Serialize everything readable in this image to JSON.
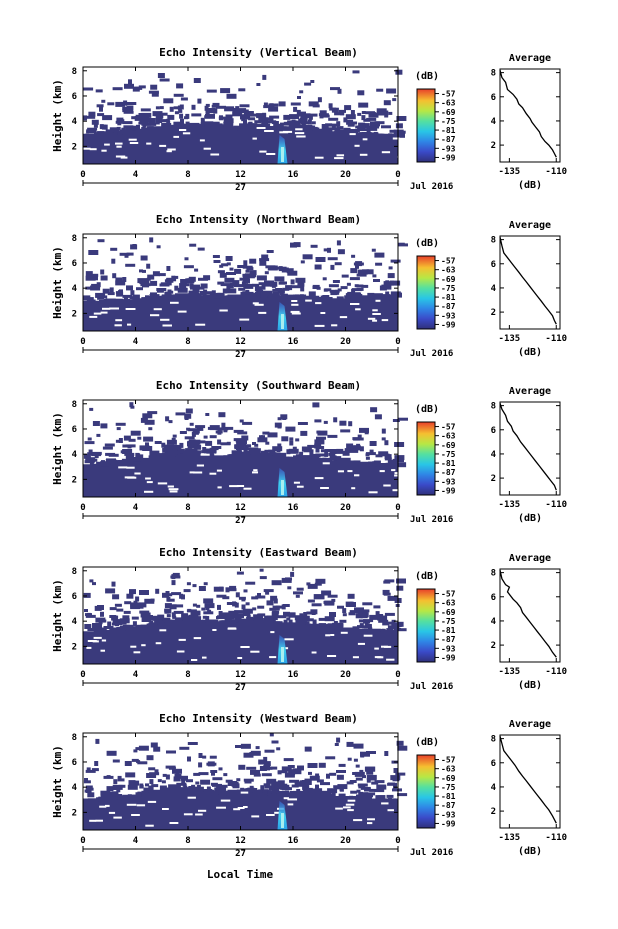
{
  "figure": {
    "xlabel": "Local Time",
    "date_label": "Jul 2016",
    "day_label": "27",
    "colorbar_unit": "(dB)",
    "avg_title": "Average",
    "avg_xlabel": "(dB)"
  },
  "chart_data": [
    {
      "type": "heatmap",
      "title": "Echo Intensity (Vertical Beam)",
      "ylabel": "Height (km)",
      "x_ticks": [
        "0",
        "4",
        "8",
        "12",
        "16",
        "20",
        "0"
      ],
      "xlim": [
        0,
        24
      ],
      "y_ticks": [
        "2",
        "4",
        "6",
        "8"
      ],
      "ylim": [
        0.6,
        8.3
      ],
      "colorbar_ticks": [
        "-57",
        "-63",
        "-69",
        "-75",
        "-81",
        "-87",
        "-93",
        "-99"
      ],
      "colorbar_range": [
        -102,
        -54
      ],
      "dense_layer_top_km": [
        3.0,
        3.2,
        3.2,
        3.3,
        3.4,
        3.6,
        3.7,
        3.8,
        3.8,
        3.7,
        3.6,
        3.6,
        3.7,
        3.8,
        3.6,
        3.6,
        3.7,
        3.5,
        3.4,
        3.2,
        3.3,
        3.1,
        3.0,
        3.0
      ],
      "enhanced_echo_time_h": 15.2,
      "enhanced_echo_top_km": 2.9
    },
    {
      "type": "line",
      "title": "Average",
      "xlabel": "(dB)",
      "x_ticks": [
        "-135",
        "-110"
      ],
      "xlim": [
        -140,
        -108
      ],
      "y_ticks": [
        "2",
        "4",
        "6",
        "8"
      ],
      "ylim": [
        0.6,
        8.3
      ],
      "x": [
        -140,
        -139,
        -137,
        -136,
        -133,
        -131,
        -130,
        -128,
        -126,
        -124,
        -123,
        -121,
        -119,
        -118,
        -116,
        -114,
        -112,
        -111,
        -110
      ],
      "y": [
        8.2,
        7.6,
        7.2,
        6.6,
        6.2,
        5.8,
        5.4,
        5.1,
        4.6,
        4.2,
        3.9,
        3.5,
        3.1,
        2.7,
        2.3,
        2.0,
        1.6,
        1.3,
        1.0
      ]
    },
    {
      "type": "heatmap",
      "title": "Echo Intensity (Northward Beam)",
      "ylabel": "Height (km)",
      "x_ticks": [
        "0",
        "4",
        "8",
        "12",
        "16",
        "20",
        "0"
      ],
      "xlim": [
        0,
        24
      ],
      "y_ticks": [
        "2",
        "4",
        "6",
        "8"
      ],
      "ylim": [
        0.6,
        8.3
      ],
      "colorbar_ticks": [
        "-57",
        "-63",
        "-69",
        "-75",
        "-81",
        "-87",
        "-93",
        "-99"
      ],
      "colorbar_range": [
        -102,
        -54
      ],
      "dense_layer_top_km": [
        3.0,
        3.0,
        3.1,
        3.1,
        3.2,
        3.4,
        3.5,
        3.6,
        3.6,
        3.4,
        3.4,
        3.5,
        3.7,
        3.6,
        3.5,
        3.4,
        3.5,
        3.4,
        3.3,
        3.2,
        3.3,
        3.3,
        3.4,
        3.4
      ],
      "enhanced_echo_time_h": 15.2,
      "enhanced_echo_top_km": 2.9
    },
    {
      "type": "line",
      "title": "Average",
      "xlabel": "(dB)",
      "x_ticks": [
        "-135",
        "-110"
      ],
      "xlim": [
        -140,
        -108
      ],
      "y_ticks": [
        "2",
        "4",
        "6",
        "8"
      ],
      "ylim": [
        0.6,
        8.3
      ],
      "x": [
        -140,
        -139,
        -138,
        -136,
        -134,
        -132,
        -130,
        -128,
        -126,
        -124,
        -122,
        -120,
        -118,
        -116,
        -114,
        -112,
        -111,
        -110
      ],
      "y": [
        8.2,
        7.5,
        6.9,
        6.5,
        6.1,
        5.7,
        5.3,
        4.9,
        4.5,
        4.1,
        3.7,
        3.3,
        2.9,
        2.5,
        2.1,
        1.7,
        1.3,
        1.0
      ]
    },
    {
      "type": "heatmap",
      "title": "Echo Intensity (Southward Beam)",
      "ylabel": "Height (km)",
      "x_ticks": [
        "0",
        "4",
        "8",
        "12",
        "16",
        "20",
        "0"
      ],
      "xlim": [
        0,
        24
      ],
      "y_ticks": [
        "2",
        "4",
        "6",
        "8"
      ],
      "ylim": [
        0.6,
        8.3
      ],
      "colorbar_ticks": [
        "-57",
        "-63",
        "-69",
        "-75",
        "-81",
        "-87",
        "-93",
        "-99"
      ],
      "colorbar_range": [
        -102,
        -54
      ],
      "dense_layer_top_km": [
        3.2,
        3.4,
        3.5,
        3.6,
        3.7,
        3.9,
        4.1,
        4.3,
        4.3,
        4.0,
        3.9,
        4.0,
        4.2,
        4.1,
        3.9,
        3.8,
        3.9,
        3.8,
        3.7,
        3.5,
        3.5,
        3.4,
        3.3,
        3.3
      ],
      "enhanced_echo_time_h": 15.2,
      "enhanced_echo_top_km": 2.9
    },
    {
      "type": "line",
      "title": "Average",
      "xlabel": "(dB)",
      "x_ticks": [
        "-135",
        "-110"
      ],
      "xlim": [
        -140,
        -108
      ],
      "y_ticks": [
        "2",
        "4",
        "6",
        "8"
      ],
      "ylim": [
        0.6,
        8.3
      ],
      "x": [
        -140,
        -139,
        -137,
        -136,
        -134,
        -133,
        -131,
        -129,
        -127,
        -125,
        -123,
        -121,
        -119,
        -117,
        -115,
        -113,
        -111,
        -110
      ],
      "y": [
        8.2,
        7.7,
        7.2,
        6.7,
        6.3,
        5.9,
        5.5,
        5.0,
        4.6,
        4.2,
        3.8,
        3.4,
        3.0,
        2.6,
        2.2,
        1.8,
        1.4,
        1.0
      ]
    },
    {
      "type": "heatmap",
      "title": "Echo Intensity (Eastward Beam)",
      "ylabel": "Height (km)",
      "x_ticks": [
        "0",
        "4",
        "8",
        "12",
        "16",
        "20",
        "0"
      ],
      "xlim": [
        0,
        24
      ],
      "y_ticks": [
        "2",
        "4",
        "6",
        "8"
      ],
      "ylim": [
        0.6,
        8.3
      ],
      "colorbar_ticks": [
        "-57",
        "-63",
        "-69",
        "-75",
        "-81",
        "-87",
        "-93",
        "-99"
      ],
      "colorbar_range": [
        -102,
        -54
      ],
      "dense_layer_top_km": [
        3.2,
        3.3,
        3.5,
        3.6,
        3.7,
        3.9,
        4.1,
        4.3,
        4.4,
        4.1,
        4.0,
        4.1,
        4.2,
        4.1,
        4.0,
        3.9,
        3.9,
        3.8,
        3.7,
        3.5,
        3.5,
        3.4,
        3.3,
        3.3
      ],
      "enhanced_echo_time_h": 15.2,
      "enhanced_echo_top_km": 2.9
    },
    {
      "type": "line",
      "title": "Average",
      "xlabel": "(dB)",
      "x_ticks": [
        "-135",
        "-110"
      ],
      "xlim": [
        -140,
        -108
      ],
      "y_ticks": [
        "2",
        "4",
        "6",
        "8"
      ],
      "ylim": [
        0.6,
        8.3
      ],
      "x": [
        -140,
        -139,
        -137,
        -135,
        -136,
        -133,
        -131,
        -129,
        -128,
        -126,
        -124,
        -122,
        -120,
        -118,
        -116,
        -114,
        -112,
        -110
      ],
      "y": [
        8.2,
        7.5,
        7.0,
        6.8,
        6.4,
        5.8,
        5.5,
        5.1,
        4.7,
        4.3,
        3.9,
        3.5,
        3.1,
        2.7,
        2.3,
        1.9,
        1.4,
        1.0
      ]
    },
    {
      "type": "heatmap",
      "title": "Echo Intensity (Westward Beam)",
      "ylabel": "Height (km)",
      "x_ticks": [
        "0",
        "4",
        "8",
        "12",
        "16",
        "20",
        "0"
      ],
      "xlim": [
        0,
        24
      ],
      "y_ticks": [
        "2",
        "4",
        "6",
        "8"
      ],
      "ylim": [
        0.6,
        8.3
      ],
      "colorbar_ticks": [
        "-57",
        "-63",
        "-69",
        "-75",
        "-81",
        "-87",
        "-93",
        "-99"
      ],
      "colorbar_range": [
        -102,
        -54
      ],
      "dense_layer_top_km": [
        3.1,
        3.2,
        3.3,
        3.4,
        3.6,
        3.8,
        3.9,
        4.0,
        4.0,
        3.8,
        3.7,
        3.8,
        3.9,
        3.8,
        3.7,
        3.6,
        3.7,
        3.6,
        3.5,
        3.3,
        3.3,
        3.2,
        3.1,
        3.1
      ],
      "enhanced_echo_time_h": 15.2,
      "enhanced_echo_top_km": 2.9
    },
    {
      "type": "line",
      "title": "Average",
      "xlabel": "(dB)",
      "x_ticks": [
        "-135",
        "-110"
      ],
      "xlim": [
        -140,
        -108
      ],
      "y_ticks": [
        "2",
        "4",
        "6",
        "8"
      ],
      "ylim": [
        0.6,
        8.3
      ],
      "x": [
        -140,
        -139,
        -138,
        -136,
        -134,
        -132,
        -130,
        -128,
        -126,
        -124,
        -122,
        -120,
        -118,
        -116,
        -114,
        -112,
        -110
      ],
      "y": [
        8.2,
        7.6,
        7.0,
        6.6,
        6.2,
        5.8,
        5.3,
        4.9,
        4.5,
        4.1,
        3.7,
        3.3,
        2.9,
        2.5,
        2.1,
        1.6,
        1.0
      ]
    }
  ]
}
